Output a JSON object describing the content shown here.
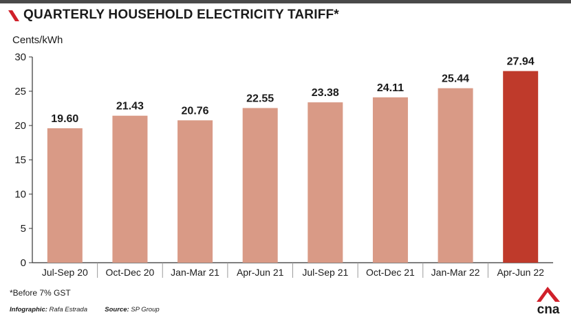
{
  "header": {
    "title": "QUARTERLY HOUSEHOLD ELECTRICITY TARIFF*",
    "unit": "Cents/kWh"
  },
  "footer": {
    "note": "*Before 7% GST",
    "credit_label": "Infographic:",
    "credit_value": "Rafa Estrada",
    "source_label": "Source:",
    "source_value": "SP Group",
    "logo_text": "cna"
  },
  "colors": {
    "bar": "#d99a86",
    "highlight_bar": "#bf3a2b",
    "brand_red": "#d0202a",
    "axis": "#333333",
    "divider": "#9a9a9a"
  },
  "chart_data": {
    "type": "bar",
    "title": "QUARTERLY HOUSEHOLD ELECTRICITY TARIFF*",
    "ylabel": "Cents/kWh",
    "xlabel": "",
    "categories": [
      "Jul-Sep 20",
      "Oct-Dec 20",
      "Jan-Mar 21",
      "Apr-Jun 21",
      "Jul-Sep 21",
      "Oct-Dec 21",
      "Jan-Mar 22",
      "Apr-Jun 22"
    ],
    "values": [
      19.6,
      21.43,
      20.76,
      22.55,
      23.38,
      24.11,
      25.44,
      27.94
    ],
    "value_labels": [
      "19.60",
      "21.43",
      "20.76",
      "22.55",
      "23.38",
      "24.11",
      "25.44",
      "27.94"
    ],
    "highlight_index": 7,
    "ylim": [
      0,
      30
    ],
    "yticks": [
      0,
      5,
      10,
      15,
      20,
      25,
      30
    ],
    "grid": false,
    "legend": "none"
  }
}
